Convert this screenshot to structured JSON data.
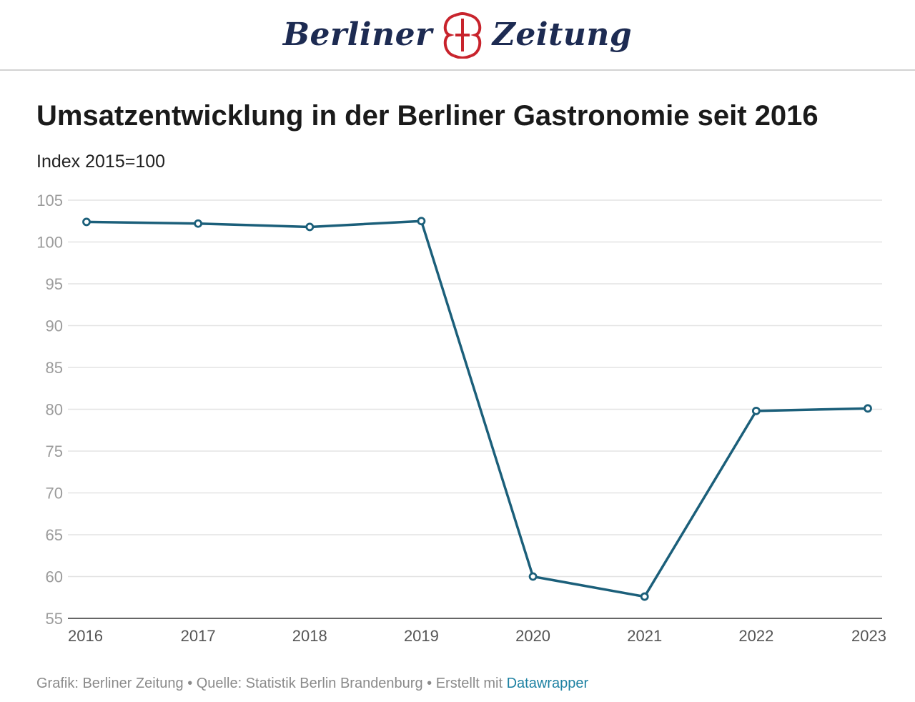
{
  "masthead": {
    "logo_left": "Berliner",
    "logo_right": "Zeitung",
    "emblem_color": "#c8232c",
    "logo_color": "#1d2b52"
  },
  "chart_data": {
    "type": "line",
    "title": "Umsatzentwicklung in der Berliner Gastronomie seit 2016",
    "subtitle": "Index 2015=100",
    "x": [
      "2016",
      "2017",
      "2018",
      "2019",
      "2020",
      "2021",
      "2022",
      "2023"
    ],
    "series": [
      {
        "values": [
          102.4,
          102.2,
          101.8,
          102.5,
          60.0,
          57.6,
          79.8,
          80.1
        ],
        "color": "#1b5f7a"
      }
    ],
    "ylim": [
      55,
      105
    ],
    "yticks": [
      105,
      100,
      95,
      90,
      85,
      80,
      75,
      70,
      65,
      60,
      55
    ],
    "grid": true,
    "markers": true
  },
  "footer": {
    "text": "Grafik: Berliner Zeitung • Quelle: Statistik Berlin Brandenburg • Erstellt mit ",
    "link": "Datawrapper",
    "link_color": "#1d81a2"
  }
}
